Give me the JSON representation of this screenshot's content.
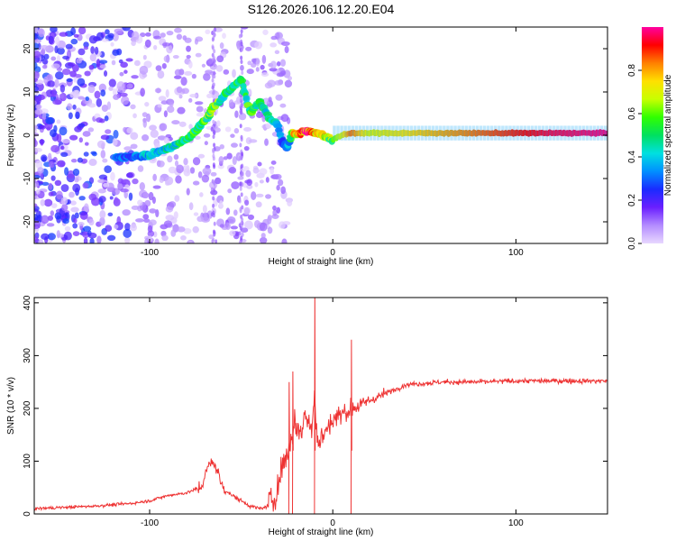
{
  "title": "S126.2026.106.12.20.E04",
  "chart_data": [
    {
      "type": "heatmap",
      "xlabel": "Height of straight line (km)",
      "ylabel": "Frequency (Hz)",
      "xlim": [
        -163,
        150
      ],
      "ylim": [
        -25,
        25
      ],
      "x_ticks": [
        -100,
        0,
        100
      ],
      "x_tick_labels": [
        "-100",
        "0",
        "100"
      ],
      "y_ticks": [
        -20,
        -10,
        0,
        10,
        20
      ],
      "y_tick_labels": [
        "-20",
        "-10",
        "0",
        "10",
        "20"
      ],
      "colorbar": {
        "label": "Normalized spectral amplitude",
        "range": [
          0,
          1
        ],
        "ticks": [
          0.0,
          0.2,
          0.4,
          0.6,
          0.8
        ],
        "tick_labels": [
          "0.0",
          "0.2",
          "0.4",
          "0.6",
          "0.8"
        ],
        "colors": [
          "#e8d8ff",
          "#b48cff",
          "#6a1fff",
          "#1a2bff",
          "#0090ff",
          "#00e0e0",
          "#00e060",
          "#30ff00",
          "#c8ff00",
          "#ffe000",
          "#ff8000",
          "#ff0000",
          "#ff00a0"
        ]
      },
      "ridge": {
        "x": [
          -110,
          -100,
          -90,
          -80,
          -75,
          -70,
          -65,
          -60,
          -55,
          -50,
          -45,
          -40,
          -35,
          -30,
          -28,
          -25,
          -22,
          -20,
          -15,
          -12,
          -10,
          -5,
          0,
          5,
          10,
          20,
          40,
          60,
          80,
          100,
          120,
          150
        ],
        "y": [
          -5,
          -4.5,
          -3,
          -1,
          1,
          3.5,
          6.5,
          9,
          11,
          13,
          5,
          8,
          4,
          2.5,
          -1,
          -3,
          0.5,
          0,
          1,
          1,
          0.5,
          0,
          -1,
          0,
          0.5,
          0.5,
          0.5,
          0.5,
          0.5,
          0.5,
          0.5,
          0.5
        ],
        "amplitude": [
          0.3,
          0.4,
          0.45,
          0.5,
          0.55,
          0.55,
          0.6,
          0.55,
          0.5,
          0.5,
          0.55,
          0.5,
          0.45,
          0.4,
          0.35,
          0.3,
          0.6,
          0.85,
          0.95,
          0.9,
          0.8,
          0.7,
          0.6,
          0.7,
          0.85,
          0.7,
          0.75,
          0.8,
          0.85,
          0.9,
          0.95,
          0.98
        ]
      }
    },
    {
      "type": "line",
      "xlabel": "Height of straight line (km)",
      "ylabel": "SNR (10 * v/v)",
      "xlim": [
        -163,
        150
      ],
      "ylim": [
        0,
        410
      ],
      "x_ticks": [
        -100,
        0,
        100
      ],
      "x_tick_labels": [
        "-100",
        "0",
        "100"
      ],
      "y_ticks": [
        0,
        100,
        200,
        300,
        400
      ],
      "y_tick_labels": [
        "0",
        "100",
        "200",
        "300",
        "400"
      ],
      "line_color": "#ee3333",
      "series": [
        {
          "name": "SNR",
          "x": [
            -163,
            -150,
            -130,
            -110,
            -100,
            -90,
            -80,
            -72,
            -68,
            -65,
            -62,
            -60,
            -55,
            -50,
            -45,
            -40,
            -35,
            -30,
            -27,
            -24,
            -22,
            -20,
            -18,
            -15,
            -12,
            -10,
            -8,
            -5,
            0,
            10,
            20,
            30,
            40,
            60,
            80,
            100,
            120,
            150
          ],
          "y": [
            10,
            12,
            15,
            20,
            25,
            35,
            40,
            50,
            90,
            100,
            70,
            50,
            35,
            25,
            15,
            10,
            15,
            50,
            100,
            120,
            160,
            170,
            150,
            190,
            160,
            230,
            130,
            150,
            180,
            200,
            215,
            230,
            245,
            250,
            250,
            252,
            252,
            252
          ]
        }
      ]
    }
  ]
}
